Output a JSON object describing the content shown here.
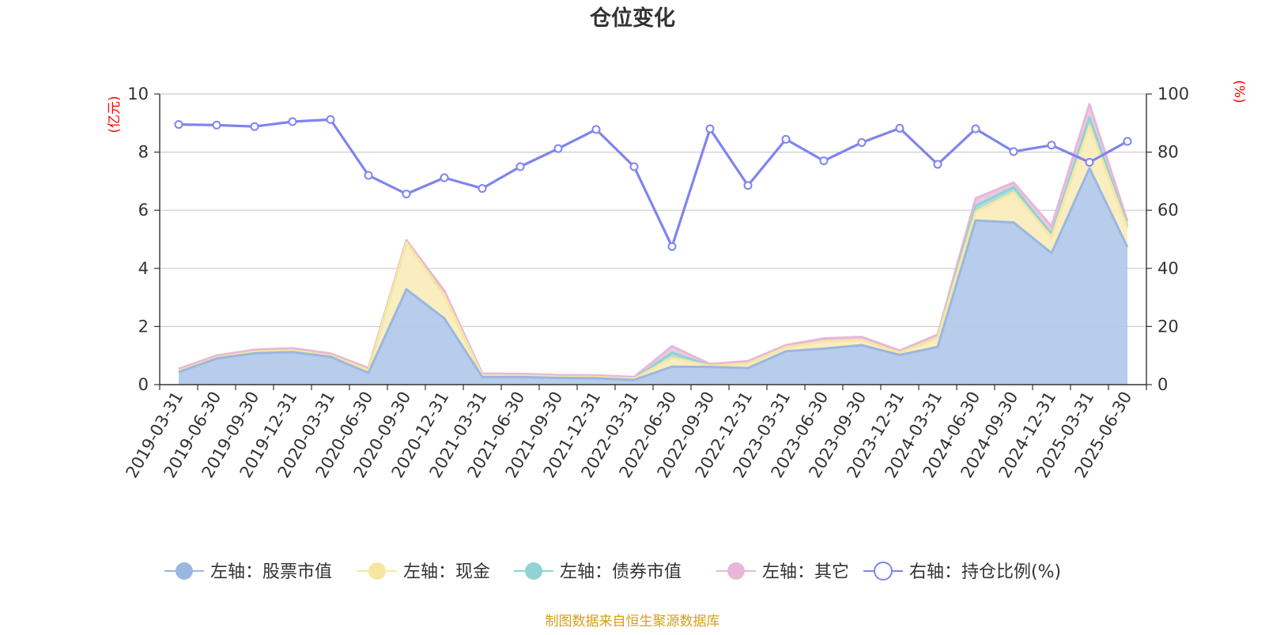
{
  "chart_data": {
    "type": "area",
    "title": "仓位变化",
    "y_left": {
      "label": "(亿元)",
      "ylim": [
        0,
        10
      ],
      "ticks": [
        0,
        2,
        4,
        6,
        8,
        10
      ]
    },
    "y_right": {
      "label": "(%)",
      "ylim": [
        0,
        100
      ],
      "ticks": [
        0,
        20,
        40,
        60,
        80,
        100
      ]
    },
    "categories": [
      "2019-03-31",
      "2019-06-30",
      "2019-09-30",
      "2019-12-31",
      "2020-03-31",
      "2020-06-30",
      "2020-09-30",
      "2020-12-31",
      "2021-03-31",
      "2021-06-30",
      "2021-09-30",
      "2021-12-31",
      "2022-03-31",
      "2022-06-30",
      "2022-09-30",
      "2022-12-31",
      "2023-03-31",
      "2023-06-30",
      "2023-09-30",
      "2023-12-31",
      "2024-03-31",
      "2024-06-30",
      "2024-09-30",
      "2024-12-31",
      "2025-03-31",
      "2025-06-30"
    ],
    "series": [
      {
        "name": "左轴：股票市值",
        "axis": "left",
        "stack": true,
        "color": "#9bb7e0",
        "fill": "#b4c9ea",
        "values": [
          0.43,
          0.9,
          1.08,
          1.12,
          0.96,
          0.4,
          3.28,
          2.28,
          0.26,
          0.26,
          0.23,
          0.22,
          0.16,
          0.62,
          0.61,
          0.57,
          1.15,
          1.24,
          1.36,
          1.02,
          1.3,
          5.65,
          5.58,
          4.53,
          7.45,
          4.73
        ]
      },
      {
        "name": "左轴：现金",
        "axis": "left",
        "stack": true,
        "color": "#f8e6a0",
        "fill": "#faedbd",
        "values": [
          0.04,
          0.03,
          0.05,
          0.06,
          0.04,
          0.1,
          1.62,
          0.8,
          0.05,
          0.05,
          0.04,
          0.04,
          0.04,
          0.3,
          0.04,
          0.16,
          0.14,
          0.25,
          0.18,
          0.08,
          0.32,
          0.3,
          1.04,
          0.55,
          1.45,
          0.66
        ]
      },
      {
        "name": "左轴：债券市值",
        "axis": "left",
        "stack": true,
        "color": "#8fd3d4",
        "fill": "#a6dddb",
        "values": [
          0,
          0,
          0,
          0,
          0,
          0,
          0,
          0,
          0,
          0,
          0,
          0,
          0,
          0.18,
          0,
          0,
          0,
          0,
          0,
          0,
          0,
          0.2,
          0.18,
          0.1,
          0.3,
          0.06
        ]
      },
      {
        "name": "左轴：其它",
        "axis": "left",
        "stack": true,
        "color": "#e7b7d9",
        "fill": "#ecc6e1",
        "values": [
          0.07,
          0.07,
          0.07,
          0.07,
          0.07,
          0.07,
          0.07,
          0.15,
          0.07,
          0.06,
          0.06,
          0.06,
          0.06,
          0.22,
          0.06,
          0.08,
          0.07,
          0.1,
          0.1,
          0.07,
          0.1,
          0.26,
          0.15,
          0.27,
          0.45,
          0.17
        ]
      },
      {
        "name": "右轴：持仓比例(%)",
        "axis": "right",
        "stack": false,
        "color": "#7f84f0",
        "values": [
          89.5,
          89.3,
          88.8,
          90.5,
          91.2,
          72.0,
          65.6,
          71.2,
          67.5,
          75.0,
          81.2,
          87.8,
          75.0,
          47.5,
          88.0,
          68.5,
          84.4,
          77.0,
          83.3,
          88.2,
          75.8,
          88.0,
          80.2,
          82.4,
          76.5,
          83.7
        ]
      }
    ],
    "legend_position": "bottom",
    "grid": true
  },
  "source_note": "制图数据来自恒生聚源数据库"
}
